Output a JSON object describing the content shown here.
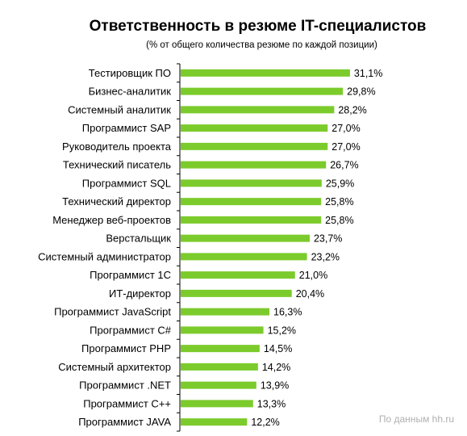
{
  "chart_data": {
    "type": "bar",
    "orientation": "horizontal",
    "title": "Ответственность  в резюме IT-специалистов",
    "subtitle": "(% от общего количества  резюме по каждой позиции)",
    "categories": [
      "Тестировщик ПО",
      "Бизнес-аналитик",
      "Системный аналитик",
      "Программист SAP",
      "Руководитель проекта",
      "Технический писатель",
      "Программист SQL",
      "Технический директор",
      "Менеджер веб-проектов",
      "Верстальщик",
      "Системный администратор",
      "Программист 1С",
      "ИТ-директор",
      "Программист JavaScript",
      "Программист C#",
      "Программист PHP",
      "Системный архитектор",
      "Программист .NET",
      "Программист C++",
      "Программист JAVA"
    ],
    "values": [
      31.1,
      29.8,
      28.2,
      27.0,
      27.0,
      26.7,
      25.9,
      25.8,
      25.8,
      23.7,
      23.2,
      21.0,
      20.4,
      16.3,
      15.2,
      14.5,
      14.2,
      13.9,
      13.3,
      12.2
    ],
    "value_labels": [
      "31,1%",
      "29,8%",
      "28,2%",
      "27,0%",
      "27,0%",
      "26,7%",
      "25,9%",
      "25,8%",
      "25,8%",
      "23,7%",
      "23,2%",
      "21,0%",
      "20,4%",
      "16,3%",
      "15,2%",
      "14,5%",
      "14,2%",
      "13,9%",
      "13,3%",
      "12,2%"
    ],
    "bar_color": "#7ccb2c",
    "axis_color": "#000000",
    "grid": false,
    "legend": "none"
  },
  "source": "По данным hh.ru"
}
